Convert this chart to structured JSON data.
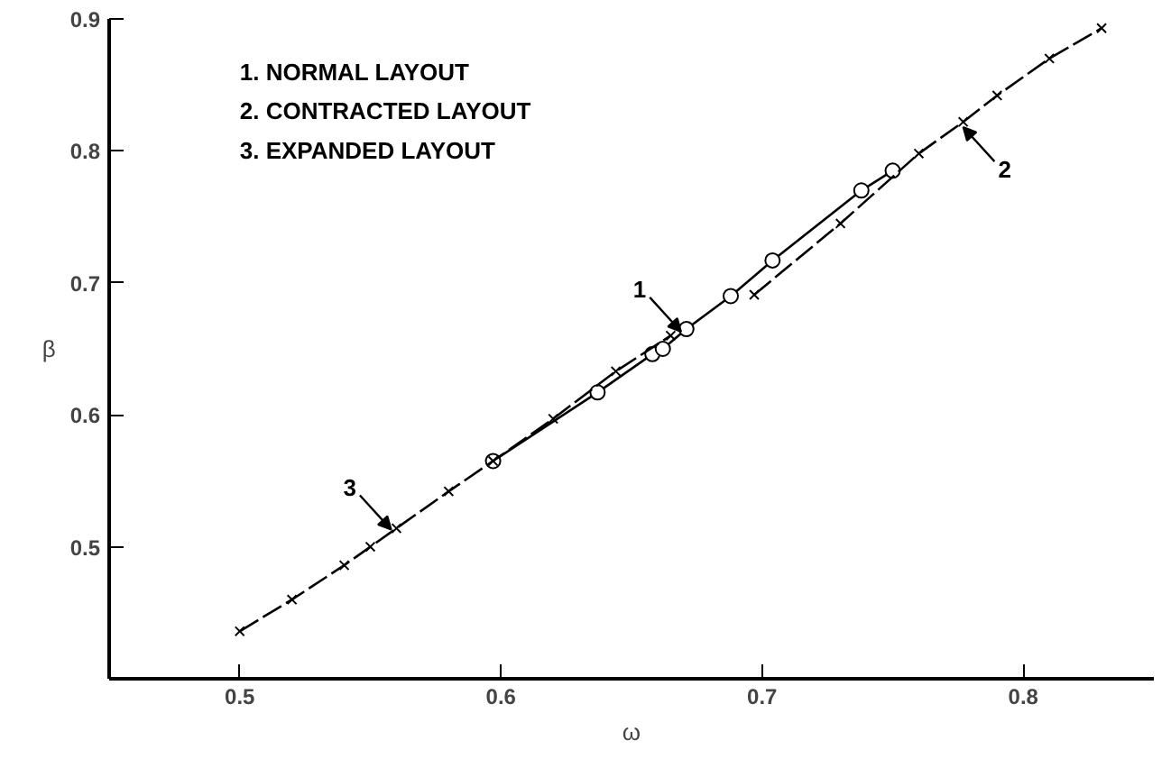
{
  "chart_data": {
    "type": "line",
    "xlabel": "ω",
    "ylabel": "β",
    "xlim": [
      0.45,
      0.85
    ],
    "ylim": [
      0.4,
      0.9
    ],
    "xticks": [
      0.5,
      0.6,
      0.7,
      0.8
    ],
    "yticks": [
      0.5,
      0.6,
      0.7,
      0.8,
      0.9
    ],
    "grid": false,
    "series": [
      {
        "color": "#000000",
        "marker": "circle",
        "line_style": "solid",
        "x": [
          0.597,
          0.637,
          0.658,
          0.662,
          0.671,
          0.688,
          0.704,
          0.738,
          0.75
        ],
        "values": [
          0.565,
          0.617,
          0.646,
          0.65,
          0.665,
          0.69,
          0.717,
          0.77,
          0.785
        ]
      },
      {
        "color": "#000000",
        "marker": "cross",
        "line_style": "dashed",
        "x": [
          0.697,
          0.73,
          0.76,
          0.777,
          0.79,
          0.81,
          0.83
        ],
        "values": [
          0.691,
          0.745,
          0.798,
          0.822,
          0.842,
          0.87,
          0.893
        ]
      },
      {
        "color": "#000000",
        "marker": "cross",
        "line_style": "dashed",
        "x": [
          0.5,
          0.52,
          0.54,
          0.55,
          0.56,
          0.58,
          0.597,
          0.62,
          0.644,
          0.665
        ],
        "values": [
          0.436,
          0.46,
          0.486,
          0.5,
          0.514,
          0.542,
          0.565,
          0.597,
          0.633,
          0.66
        ]
      }
    ],
    "annotations": [
      "1. NORMAL LAYOUT",
      "2. CONTRACTED LAYOUT",
      "3. EXPANDED LAYOUT",
      {
        "text": "1",
        "x": 0.669,
        "y": 0.663
      },
      {
        "text": "2",
        "x": 0.777,
        "y": 0.818
      },
      {
        "text": "3",
        "x": 0.558,
        "y": 0.513
      }
    ]
  }
}
